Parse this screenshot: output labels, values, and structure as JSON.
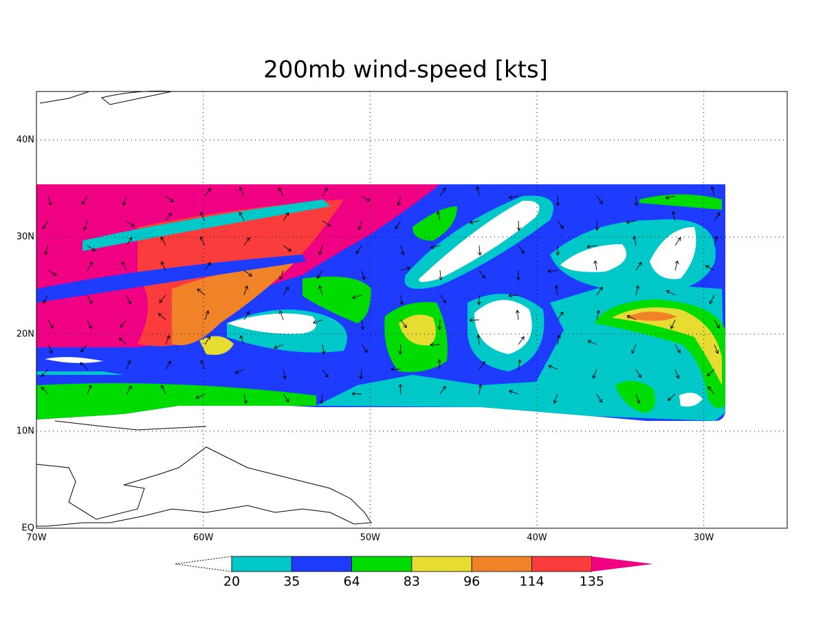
{
  "chart_data": {
    "type": "map",
    "title": "200mb wind-speed [kts]",
    "xlim": [
      -70,
      -25
    ],
    "ylim": [
      0,
      45
    ],
    "xticks": [
      {
        "value": -70,
        "label": "70W"
      },
      {
        "value": -60,
        "label": "60W"
      },
      {
        "value": -50,
        "label": "50W"
      },
      {
        "value": -40,
        "label": "40W"
      },
      {
        "value": -30,
        "label": "30W"
      }
    ],
    "yticks": [
      {
        "value": 0,
        "label": "EQ"
      },
      {
        "value": 10,
        "label": "10N"
      },
      {
        "value": 20,
        "label": "20N"
      },
      {
        "value": 30,
        "label": "30N"
      },
      {
        "value": 40,
        "label": "40N"
      }
    ],
    "grid": true,
    "colorbar": {
      "levels": [
        20,
        35,
        64,
        83,
        96,
        114,
        135
      ],
      "colors": [
        "#00c8c8",
        "#1e3cff",
        "#00dc00",
        "#e6dc32",
        "#f08228",
        "#fa3c3c",
        "#f00082"
      ]
    }
  }
}
